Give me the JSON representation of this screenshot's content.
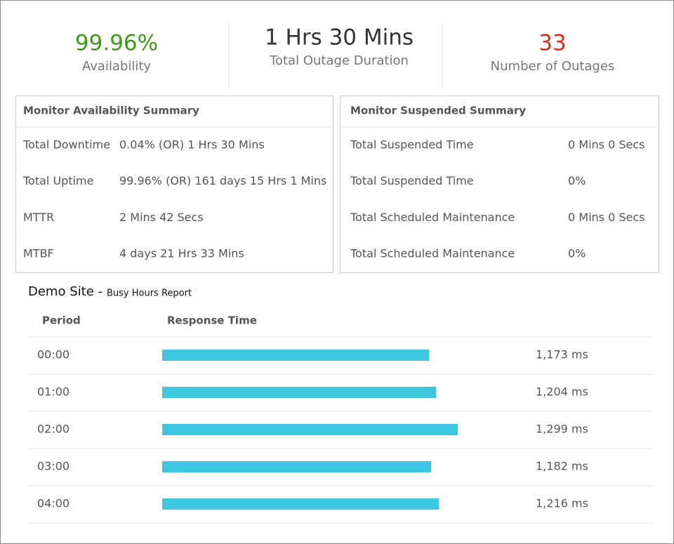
{
  "stats": [
    {
      "value": "99.96%",
      "label": "Availability",
      "color": "#3f9c1a"
    },
    {
      "value": "1 Hrs 30 Mins",
      "label": "Total Outage Duration",
      "color": "#333333"
    },
    {
      "value": "33",
      "label": "Number of Outages",
      "color": "#e0281d"
    }
  ],
  "availability_summary": {
    "title": "Monitor Availability Summary",
    "rows": [
      [
        "Total Downtime",
        "0.04% (OR) 1 Hrs 30 Mins"
      ],
      [
        "Total Uptime",
        "99.96% (OR) 161 days 15 Hrs 1 Mins"
      ],
      [
        "MTTR",
        "2 Mins 42 Secs"
      ],
      [
        "MTBF",
        "4 days 21 Hrs 33 Mins"
      ]
    ]
  },
  "suspended_summary": {
    "title": "Monitor Suspended Summary",
    "rows": [
      [
        "Total Suspended Time",
        "0 Mins 0 Secs"
      ],
      [
        "Total Suspended Time",
        "0%"
      ],
      [
        "Total Scheduled Maintenance",
        "0 Mins 0 Secs"
      ],
      [
        "Total Scheduled Maintenance",
        "0%"
      ]
    ]
  },
  "busy_hours": {
    "title": "Demo Site -",
    "subtitle": "Busy Hours Report",
    "columns": [
      "Period",
      "Response Time"
    ],
    "periods": [
      "00:00",
      "01:00",
      "02:00",
      "03:00",
      "04:00"
    ],
    "values": [
      1173,
      1204,
      1299,
      1182,
      1216
    ],
    "value_labels": [
      "1,173 ms",
      "1,204 ms",
      "1,299 ms",
      "1,182 ms",
      "1,216 ms"
    ],
    "color": "#3ec6e0"
  }
}
